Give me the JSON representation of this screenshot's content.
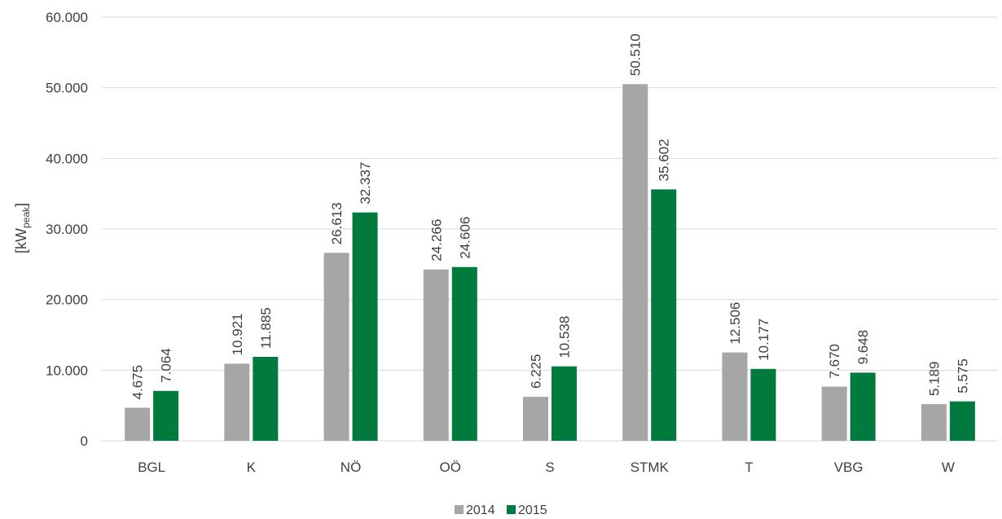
{
  "chart_data": {
    "type": "bar",
    "title": "",
    "xlabel": "",
    "ylabel": "[kWpeak]",
    "ylabel_main": "[kW",
    "ylabel_sub": "peak",
    "ylabel_close": "]",
    "categories": [
      "BGL",
      "K",
      "NÖ",
      "OÖ",
      "S",
      "STMK",
      "T",
      "VBG",
      "W"
    ],
    "series": [
      {
        "name": "2014",
        "color": "#a6a6a6",
        "values": [
          4675,
          10921,
          26613,
          24266,
          6225,
          50510,
          12506,
          7670,
          5189
        ],
        "labels": [
          "4.675",
          "10.921",
          "26.613",
          "24.266",
          "6.225",
          "50.510",
          "12.506",
          "7.670",
          "5.189"
        ]
      },
      {
        "name": "2015",
        "color": "#007a3d",
        "values": [
          7064,
          11885,
          32337,
          24606,
          10538,
          35602,
          10177,
          9648,
          5575
        ],
        "labels": [
          "7.064",
          "11.885",
          "32.337",
          "24.606",
          "10.538",
          "35.602",
          "10.177",
          "9.648",
          "5.575"
        ]
      }
    ],
    "ylim": [
      0,
      60000
    ],
    "yticks": [
      0,
      10000,
      20000,
      30000,
      40000,
      50000,
      60000
    ],
    "ytick_labels": [
      "0",
      "10.000",
      "20.000",
      "30.000",
      "40.000",
      "50.000",
      "60.000"
    ],
    "grid": true,
    "legend_position": "bottom-center"
  }
}
